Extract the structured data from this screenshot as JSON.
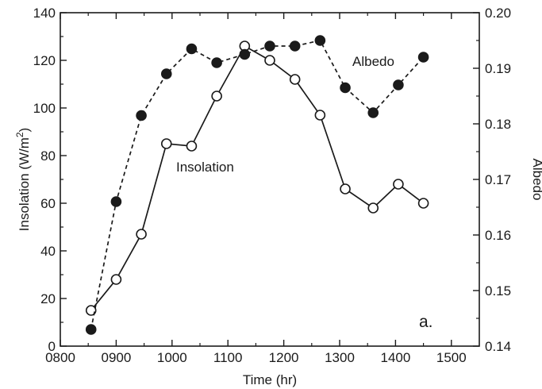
{
  "chart_data": {
    "type": "line",
    "panel_label": "a.",
    "xlabel": "Time (hr)",
    "ylabel_left": "Insolation (W/m",
    "ylabel_left_sup": "2",
    "ylabel_left_close": ")",
    "ylabel_right": "Albedo",
    "xlim": [
      800,
      1550
    ],
    "ylim_left": [
      0,
      140
    ],
    "ylim_right": [
      0.14,
      0.2
    ],
    "x_ticks": [
      {
        "value": 800,
        "label": "0800"
      },
      {
        "value": 900,
        "label": "0900"
      },
      {
        "value": 1000,
        "label": "1000"
      },
      {
        "value": 1100,
        "label": "1100"
      },
      {
        "value": 1200,
        "label": "1200"
      },
      {
        "value": 1300,
        "label": "1300"
      },
      {
        "value": 1400,
        "label": "1400"
      },
      {
        "value": 1500,
        "label": "1500"
      }
    ],
    "y_left_ticks": [
      {
        "value": 0,
        "label": "0"
      },
      {
        "value": 20,
        "label": "20"
      },
      {
        "value": 40,
        "label": "40"
      },
      {
        "value": 60,
        "label": "60"
      },
      {
        "value": 80,
        "label": "80"
      },
      {
        "value": 100,
        "label": "100"
      },
      {
        "value": 120,
        "label": "120"
      },
      {
        "value": 140,
        "label": "140"
      }
    ],
    "y_right_ticks": [
      {
        "value": 0.14,
        "label": "0.14"
      },
      {
        "value": 0.15,
        "label": "0.15"
      },
      {
        "value": 0.16,
        "label": "0.16"
      },
      {
        "value": 0.17,
        "label": "0.17"
      },
      {
        "value": 0.18,
        "label": "0.18"
      },
      {
        "value": 0.19,
        "label": "0.19"
      },
      {
        "value": 0.2,
        "label": "0.20"
      }
    ],
    "series": [
      {
        "name": "Insolation",
        "axis": "left",
        "line": "solid",
        "marker": "open-circle",
        "x": [
          855,
          900,
          945,
          990,
          1035,
          1080,
          1130,
          1175,
          1220,
          1265,
          1310,
          1360,
          1405,
          1450
        ],
        "y": [
          15,
          28,
          47,
          85,
          84,
          105,
          126,
          120,
          112,
          97,
          66,
          58,
          68,
          60
        ]
      },
      {
        "name": "Albedo",
        "axis": "right",
        "line": "dashed",
        "marker": "filled-circle",
        "x": [
          855,
          900,
          945,
          990,
          1035,
          1080,
          1130,
          1175,
          1220,
          1265,
          1310,
          1360,
          1405,
          1450
        ],
        "y": [
          0.143,
          0.166,
          0.1815,
          0.189,
          0.1935,
          0.191,
          0.1925,
          0.194,
          0.194,
          0.195,
          0.1865,
          0.182,
          0.187,
          0.192
        ]
      }
    ]
  }
}
